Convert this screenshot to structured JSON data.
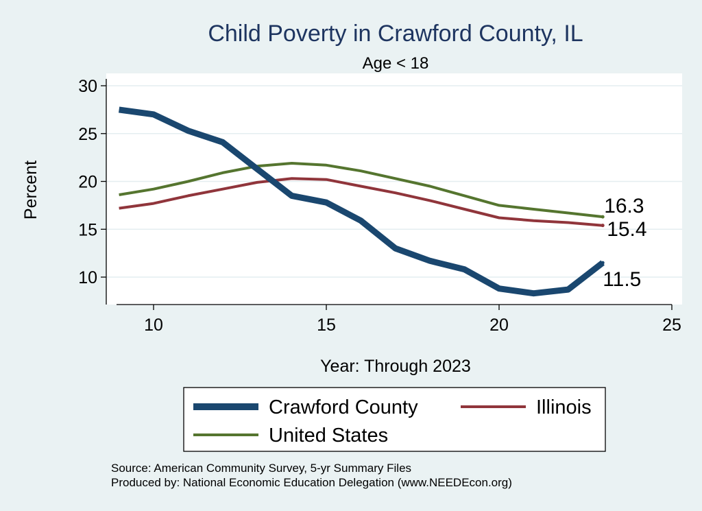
{
  "chart_data": {
    "type": "line",
    "title": "Child Poverty in Crawford County, IL",
    "subtitle": "Age < 18",
    "xlabel": "Year: Through 2023",
    "ylabel": "Percent",
    "xlim": [
      9,
      25
    ],
    "ylim": [
      7.5,
      30
    ],
    "xticks": [
      10,
      15,
      20,
      25
    ],
    "yticks": [
      10,
      15,
      20,
      25,
      30
    ],
    "grid": true,
    "legend_position": "bottom",
    "x": [
      9,
      10,
      11,
      12,
      13,
      14,
      15,
      16,
      17,
      18,
      19,
      20,
      21,
      22,
      23
    ],
    "series": [
      {
        "name": "Crawford County",
        "color": "#1a476f",
        "end_label": "11.5",
        "values": [
          27.5,
          27.0,
          25.3,
          24.1,
          21.3,
          18.5,
          17.8,
          15.9,
          13.0,
          11.7,
          10.8,
          8.8,
          8.3,
          8.7,
          11.5
        ]
      },
      {
        "name": "Illinois",
        "color": "#90353b",
        "end_label": "15.4",
        "values": [
          17.2,
          17.7,
          18.5,
          19.2,
          19.9,
          20.3,
          20.2,
          19.5,
          18.8,
          18.0,
          17.1,
          16.2,
          15.9,
          15.7,
          15.4
        ]
      },
      {
        "name": "United States",
        "color": "#55752f",
        "end_label": "16.3",
        "values": [
          18.6,
          19.2,
          20.0,
          20.9,
          21.6,
          21.9,
          21.7,
          21.1,
          20.3,
          19.5,
          18.5,
          17.5,
          17.1,
          16.7,
          16.3
        ]
      }
    ]
  },
  "notes": [
    "Source: American Community Survey, 5-yr Summary Files",
    "Produced by: National Economic Education Delegation (www.NEEDEcon.org)"
  ]
}
